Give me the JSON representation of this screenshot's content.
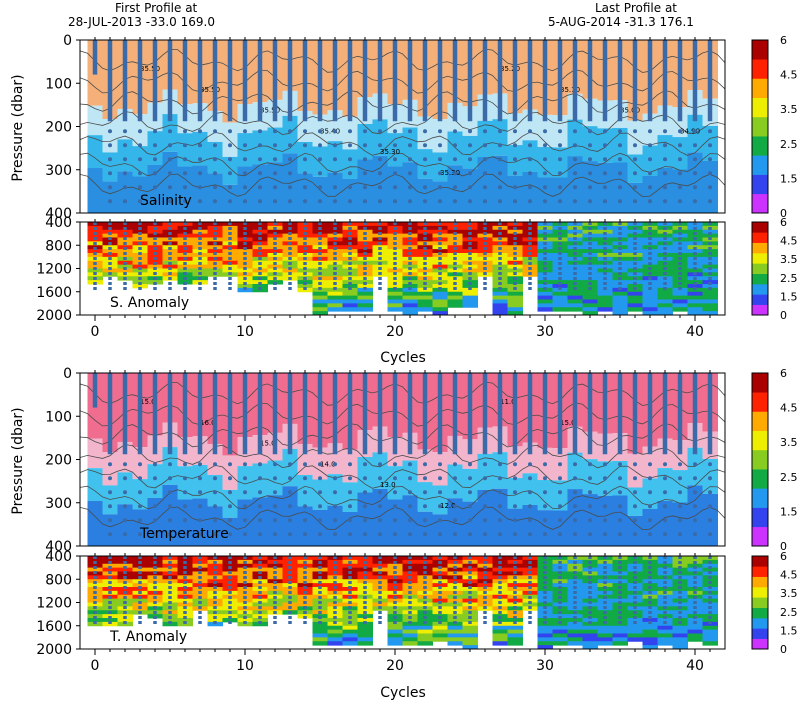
{
  "header": {
    "first_profile_label": "First Profile at",
    "first_profile_value": "28-JUL-2013    -33.0  169.0",
    "last_profile_label": "Last Profile at",
    "last_profile_value": "5-AUG-2014    -31.3  176.1"
  },
  "colors": {
    "salinity_high": "#f5b07a",
    "salinity_mid": "#bfe6f4",
    "salinity_low": "#35b6ea",
    "salinity_deep": "#2a8fe0",
    "temperature_high": "#f06d90",
    "temperature_mid": "#f2b5cc",
    "temperature_low": "#41c2ee",
    "temperature_deep": "#2a7fe0",
    "profile_line": "#3a6aa8",
    "contour": "#4b4b4b"
  },
  "chart_data": [
    {
      "type": "heatmap",
      "name_key": "salinity",
      "annotation": "Salinity",
      "xlabel": "",
      "ylabel": "Pressure (dbar)",
      "xlim": [
        -1,
        42
      ],
      "ylim": [
        400,
        0
      ],
      "yticks": [
        "0",
        "100",
        "200",
        "300",
        "400"
      ],
      "contour_labels": [
        "35.50",
        "35.50",
        "35.50",
        "35.40",
        "35.30",
        "35.30",
        "35.20",
        "35.10",
        "35.00",
        "34.90"
      ],
      "colorbar": {
        "ticks": [
          "6",
          "4.5",
          "3.5",
          "2.5",
          "1.5",
          "0"
        ]
      }
    },
    {
      "type": "heatmap",
      "name_key": "salinity_anomaly",
      "annotation": "S. Anomaly",
      "xlabel": "Cycles",
      "ylabel": "",
      "xlim": [
        -1,
        42
      ],
      "ylim": [
        2000,
        400
      ],
      "yticks": [
        "400",
        "800",
        "1200",
        "1600",
        "2000"
      ],
      "xticks": [
        "0",
        "10",
        "20",
        "30",
        "40"
      ],
      "colorbar": {
        "ticks": [
          "6",
          "4.5",
          "3.5",
          "2.5",
          "1.5",
          "0"
        ]
      }
    },
    {
      "type": "heatmap",
      "name_key": "temperature",
      "annotation": "Temperature",
      "xlabel": "",
      "ylabel": "Pressure (dbar)",
      "xlim": [
        -1,
        42
      ],
      "ylim": [
        400,
        0
      ],
      "yticks": [
        "0",
        "100",
        "200",
        "300",
        "400"
      ],
      "contour_labels": [
        "15.0",
        "16.0",
        "15.0",
        "14.0",
        "13.0",
        "12.0",
        "11.0",
        "15.0"
      ],
      "colorbar": {
        "ticks": [
          "6",
          "4.5",
          "3.5",
          "2.5",
          "1.5",
          "0"
        ]
      }
    },
    {
      "type": "heatmap",
      "name_key": "temperature_anomaly",
      "annotation": "T. Anomaly",
      "xlabel": "Cycles",
      "ylabel": "",
      "xlim": [
        -1,
        42
      ],
      "ylim": [
        2000,
        400
      ],
      "yticks": [
        "400",
        "800",
        "1200",
        "1600",
        "2000"
      ],
      "xticks": [
        "0",
        "10",
        "20",
        "30",
        "40"
      ],
      "colorbar": {
        "ticks": [
          "6",
          "4.5",
          "3.5",
          "2.5",
          "1.5",
          "0"
        ]
      }
    }
  ],
  "colorbar_palette": [
    "#cc33ff",
    "#3344ee",
    "#2299ee",
    "#11aa44",
    "#88cc22",
    "#eeee00",
    "#ffaa00",
    "#ff2200",
    "#aa0000"
  ]
}
